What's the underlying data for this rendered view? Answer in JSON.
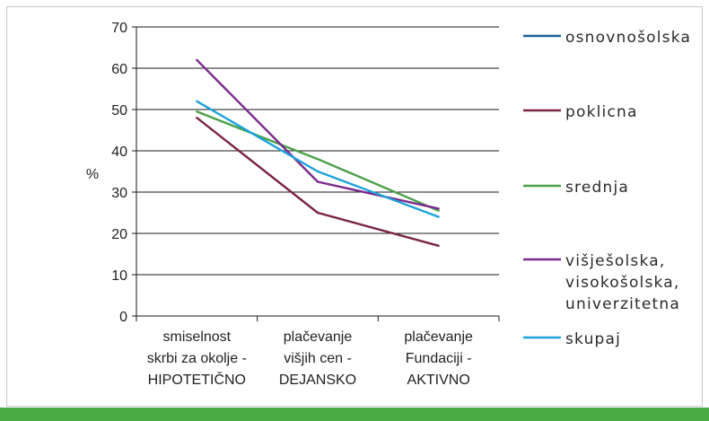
{
  "chart_data": {
    "type": "line",
    "title": "",
    "xlabel": "",
    "ylabel": "%",
    "ylim": [
      0,
      70
    ],
    "y_ticks": [
      0,
      10,
      20,
      30,
      40,
      50,
      60,
      70
    ],
    "grid": true,
    "legend_position": "right",
    "categories": [
      [
        "smiselnost",
        "skrbi za okolje -",
        "HIPOTETIČNO"
      ],
      [
        "plačevanje",
        "višjih cen -",
        "DEJANSKO"
      ],
      [
        "plačevanje",
        "Fundaciji -",
        "AKTIVNO"
      ]
    ],
    "series": [
      {
        "name": [
          "osnovnošolska"
        ],
        "color": "#1f5f95",
        "values": [
          null,
          null,
          null
        ]
      },
      {
        "name": [
          "poklicna"
        ],
        "color": "#7a2545",
        "values": [
          48,
          25,
          17
        ]
      },
      {
        "name": [
          "srednja"
        ],
        "color": "#4aa04a",
        "values": [
          49.5,
          38,
          25.5
        ]
      },
      {
        "name": [
          "višješolska,",
          "visokošolska,",
          "univerzitetna"
        ],
        "color": "#7c2a8c",
        "values": [
          62,
          32.5,
          26
        ]
      },
      {
        "name": [
          "skupaj"
        ],
        "color": "#1ea2dc",
        "values": [
          52,
          35,
          24
        ]
      }
    ]
  }
}
